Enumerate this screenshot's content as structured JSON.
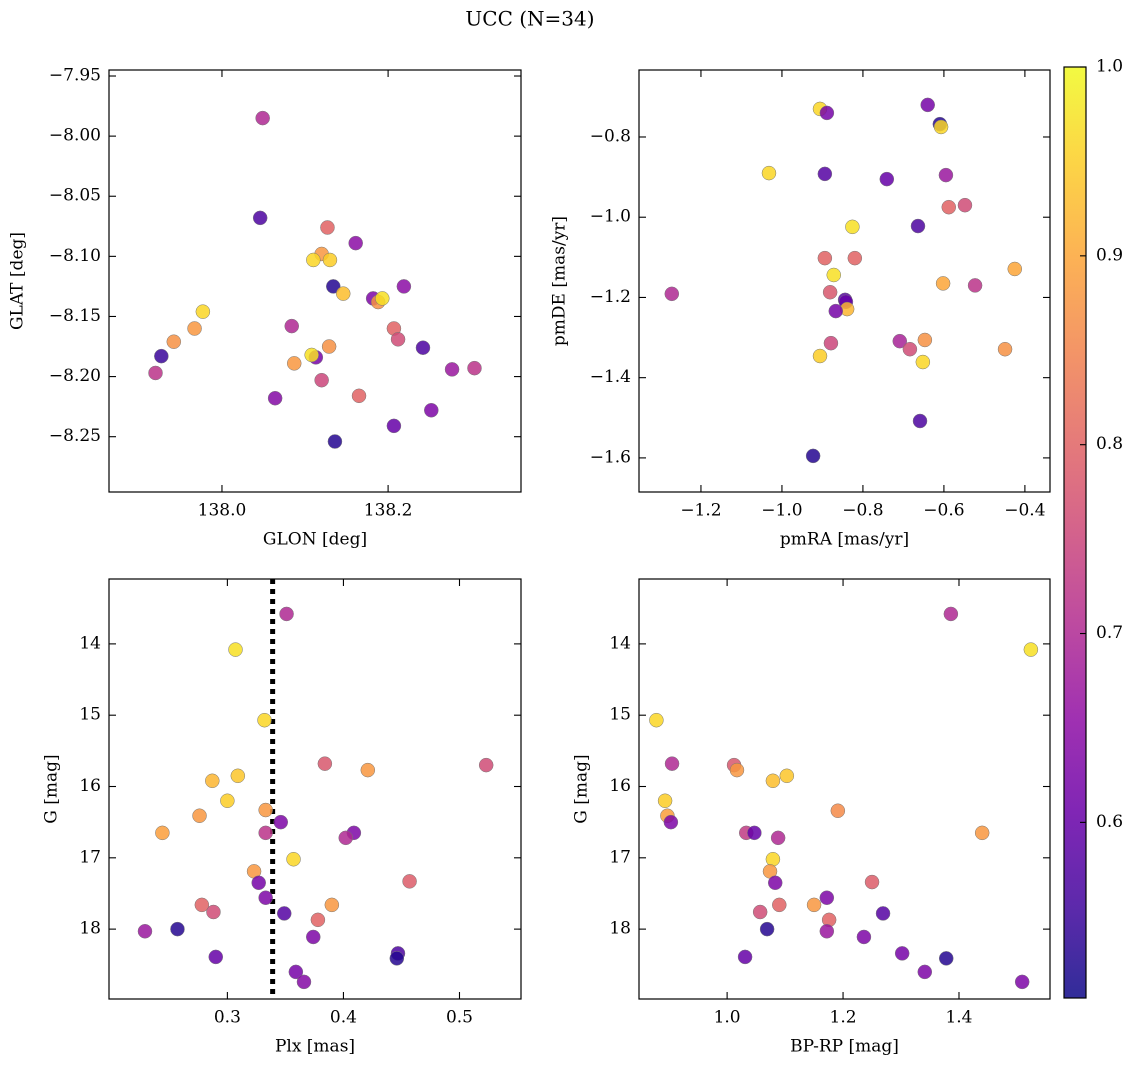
{
  "title": "UCC (N=34)",
  "colorbar": {
    "colormap": "plasma",
    "clim": [
      0.507,
      1.0
    ],
    "ticks": [
      0.6,
      0.7,
      0.8,
      0.9,
      {
        "value": 1,
        "label": "1.0"
      }
    ]
  },
  "chart_data": [
    {
      "type": "scatter",
      "xlabel": "GLON [deg]",
      "ylabel": "GLAT [deg]",
      "xlim": [
        137.864,
        138.36
      ],
      "ylim": [
        -8.296,
        -7.945
      ],
      "xticks": [
        {
          "value": 138,
          "label": "138.0"
        },
        138.2
      ],
      "yticks": [
        {
          "value": -7.95,
          "label": "−7.95"
        },
        {
          "value": -8,
          "label": "−8.00"
        },
        {
          "value": -8.05,
          "label": "−8.05"
        },
        {
          "value": -8.1,
          "label": "−8.10"
        },
        {
          "value": -8.15,
          "label": "−8.15"
        },
        {
          "value": -8.2,
          "label": "−8.20"
        },
        {
          "value": -8.25,
          "label": "−8.25"
        }
      ],
      "x": [
        138.049,
        138.046,
        138.127,
        138.161,
        138.12,
        138.11,
        138.13,
        138.134,
        138.146,
        138.219,
        138.182,
        138.188,
        138.193,
        137.977,
        137.967,
        138.084,
        137.942,
        137.927,
        137.92,
        138.207,
        138.212,
        138.113,
        138.108,
        138.129,
        138.087,
        138.242,
        138.277,
        138.304,
        138.12,
        138.064,
        138.165,
        138.252,
        138.207,
        138.136
      ],
      "y": [
        -7.985,
        -8.068,
        -8.076,
        -8.089,
        -8.098,
        -8.103,
        -8.103,
        -8.125,
        -8.131,
        -8.125,
        -8.135,
        -8.138,
        -8.135,
        -8.146,
        -8.16,
        -8.158,
        -8.171,
        -8.183,
        -8.197,
        -8.16,
        -8.169,
        -8.184,
        -8.182,
        -8.175,
        -8.189,
        -8.176,
        -8.194,
        -8.193,
        -8.203,
        -8.218,
        -8.216,
        -8.228,
        -8.241,
        -8.254
      ],
      "c": [
        0.7,
        0.57,
        0.8,
        0.65,
        0.88,
        0.96,
        0.95,
        0.53,
        0.93,
        0.65,
        0.63,
        0.87,
        0.97,
        0.96,
        0.88,
        0.7,
        0.87,
        0.55,
        0.72,
        0.8,
        0.76,
        0.62,
        0.97,
        0.87,
        0.88,
        0.57,
        0.67,
        0.72,
        0.75,
        0.64,
        0.8,
        0.63,
        0.6,
        0.53
      ]
    },
    {
      "type": "scatter",
      "xlabel": "pmRA [mas/yr]",
      "ylabel": "pmDE [mas/yr]",
      "xlim": [
        -1.353,
        -0.338
      ],
      "ylim": [
        -1.685,
        -0.633
      ],
      "xticks": [
        {
          "value": -1.2,
          "label": "−1.2"
        },
        {
          "value": -1,
          "label": "−1.0"
        },
        {
          "value": -0.8,
          "label": "−0.8"
        },
        {
          "value": -0.6,
          "label": "−0.6"
        },
        {
          "value": -0.4,
          "label": "−0.4"
        }
      ],
      "yticks": [
        {
          "value": -0.8,
          "label": "−0.8"
        },
        {
          "value": -1,
          "label": "−1.0"
        },
        {
          "value": -1.2,
          "label": "−1.2"
        },
        {
          "value": -1.4,
          "label": "−1.4"
        },
        {
          "value": -1.6,
          "label": "−1.6"
        }
      ],
      "x": [
        -0.906,
        -0.889,
        -0.64,
        -0.61,
        -0.607,
        -1.032,
        -0.894,
        -0.741,
        -0.595,
        -0.548,
        -0.588,
        -0.664,
        -0.826,
        -0.894,
        -0.82,
        -0.872,
        -0.881,
        -0.844,
        -0.842,
        -0.839,
        -0.867,
        -1.272,
        -0.602,
        -0.523,
        -0.425,
        -0.879,
        -0.709,
        -0.684,
        -0.647,
        -0.449,
        -0.906,
        -0.652,
        -0.659,
        -0.923
      ],
      "y": [
        -0.73,
        -0.74,
        -0.72,
        -0.768,
        -0.775,
        -0.89,
        -0.892,
        -0.905,
        -0.895,
        -0.97,
        -0.975,
        -1.022,
        -1.024,
        -1.102,
        -1.102,
        -1.144,
        -1.187,
        -1.206,
        -1.211,
        -1.229,
        -1.234,
        -1.191,
        -1.165,
        -1.17,
        -1.129,
        -1.314,
        -1.309,
        -1.329,
        -1.306,
        -1.329,
        -1.346,
        -1.361,
        -1.508,
        -1.595
      ],
      "c": [
        0.96,
        0.62,
        0.62,
        0.53,
        0.96,
        0.96,
        0.58,
        0.6,
        0.67,
        0.76,
        0.8,
        0.57,
        0.97,
        0.8,
        0.8,
        0.97,
        0.78,
        0.58,
        0.6,
        0.92,
        0.62,
        0.7,
        0.9,
        0.72,
        0.9,
        0.75,
        0.69,
        0.76,
        0.87,
        0.87,
        0.95,
        0.96,
        0.57,
        0.53
      ]
    },
    {
      "type": "scatter",
      "xlabel": "Plx [mas]",
      "ylabel": "G [mag]",
      "xlim": [
        0.198,
        0.553
      ],
      "ylim": [
        18.98,
        13.09
      ],
      "vline": 0.339,
      "xticks": [
        0.3,
        0.4,
        0.5
      ],
      "yticks": [
        14,
        15,
        16,
        17,
        18
      ],
      "x": [
        0.351,
        0.307,
        0.332,
        0.384,
        0.523,
        0.421,
        0.309,
        0.287,
        0.3,
        0.333,
        0.276,
        0.346,
        0.244,
        0.333,
        0.409,
        0.402,
        0.357,
        0.323,
        0.327,
        0.457,
        0.333,
        0.278,
        0.39,
        0.288,
        0.349,
        0.378,
        0.257,
        0.229,
        0.374,
        0.29,
        0.447,
        0.446,
        0.359,
        0.366
      ],
      "y": [
        13.58,
        14.08,
        15.07,
        15.68,
        15.7,
        15.77,
        15.85,
        15.92,
        16.2,
        16.33,
        16.41,
        16.5,
        16.65,
        16.65,
        16.65,
        16.72,
        17.02,
        17.19,
        17.35,
        17.33,
        17.56,
        17.66,
        17.66,
        17.76,
        17.78,
        17.87,
        18.0,
        18.03,
        18.11,
        18.39,
        18.34,
        18.41,
        18.6,
        18.74
      ],
      "c": [
        0.7,
        0.97,
        0.96,
        0.78,
        0.76,
        0.88,
        0.94,
        0.92,
        0.95,
        0.88,
        0.88,
        0.63,
        0.89,
        0.72,
        0.63,
        0.7,
        0.96,
        0.88,
        0.62,
        0.79,
        0.63,
        0.8,
        0.88,
        0.76,
        0.58,
        0.8,
        0.53,
        0.67,
        0.63,
        0.6,
        0.57,
        0.53,
        0.62,
        0.64
      ]
    },
    {
      "type": "scatter",
      "xlabel": "BP-RP [mag]",
      "ylabel": "G [mag]",
      "xlim": [
        0.848,
        1.557
      ],
      "ylim": [
        18.98,
        13.09
      ],
      "xticks": [
        {
          "value": 1,
          "label": "1.0"
        },
        1.2,
        1.4
      ],
      "yticks": [
        14,
        15,
        16,
        17,
        18
      ],
      "x": [
        1.386,
        1.524,
        0.878,
        0.905,
        1.012,
        1.017,
        1.103,
        1.079,
        0.893,
        1.191,
        0.897,
        0.903,
        1.44,
        1.033,
        1.047,
        1.088,
        1.079,
        1.074,
        1.25,
        1.083,
        1.172,
        1.09,
        1.15,
        1.057,
        1.269,
        1.176,
        1.069,
        1.172,
        1.236,
        1.031,
        1.302,
        1.378,
        1.341,
        1.509
      ],
      "y": [
        13.58,
        14.08,
        15.07,
        15.68,
        15.7,
        15.77,
        15.85,
        15.92,
        16.2,
        16.34,
        16.41,
        16.5,
        16.65,
        16.65,
        16.65,
        16.72,
        17.02,
        17.19,
        17.34,
        17.35,
        17.56,
        17.66,
        17.66,
        17.76,
        17.78,
        17.87,
        18.0,
        18.03,
        18.11,
        18.39,
        18.34,
        18.41,
        18.6,
        18.74
      ],
      "c": [
        0.7,
        0.97,
        0.96,
        0.7,
        0.78,
        0.88,
        0.94,
        0.93,
        0.95,
        0.86,
        0.89,
        0.63,
        0.88,
        0.73,
        0.6,
        0.7,
        0.96,
        0.88,
        0.79,
        0.63,
        0.63,
        0.8,
        0.88,
        0.76,
        0.58,
        0.8,
        0.53,
        0.67,
        0.63,
        0.6,
        0.62,
        0.53,
        0.63,
        0.63
      ]
    }
  ]
}
